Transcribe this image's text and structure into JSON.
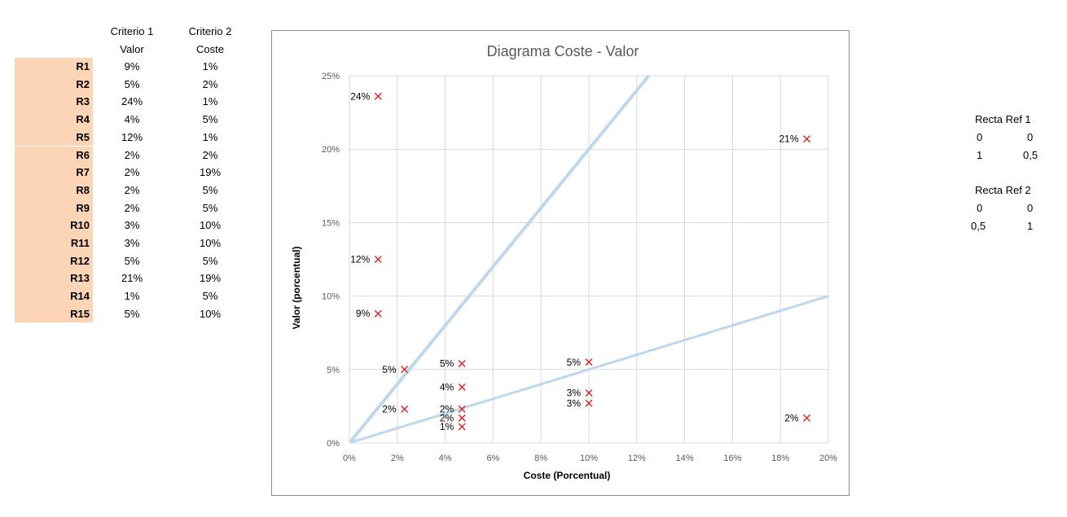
{
  "table": {
    "header1": [
      "Criterio 1",
      "Criterio 2"
    ],
    "header2": [
      "Valor",
      "Coste"
    ],
    "rows": [
      {
        "id": "R1",
        "valor": "9%",
        "coste": "1%"
      },
      {
        "id": "R2",
        "valor": "5%",
        "coste": "2%"
      },
      {
        "id": "R3",
        "valor": "24%",
        "coste": "1%"
      },
      {
        "id": "R4",
        "valor": "4%",
        "coste": "5%"
      },
      {
        "id": "R5",
        "valor": "12%",
        "coste": "1%"
      },
      {
        "id": "R6",
        "valor": "2%",
        "coste": "2%"
      },
      {
        "id": "R7",
        "valor": "2%",
        "coste": "19%"
      },
      {
        "id": "R8",
        "valor": "2%",
        "coste": "5%"
      },
      {
        "id": "R9",
        "valor": "2%",
        "coste": "5%"
      },
      {
        "id": "R10",
        "valor": "3%",
        "coste": "10%"
      },
      {
        "id": "R11",
        "valor": "3%",
        "coste": "10%"
      },
      {
        "id": "R12",
        "valor": "5%",
        "coste": "5%"
      },
      {
        "id": "R13",
        "valor": "21%",
        "coste": "19%"
      },
      {
        "id": "R14",
        "valor": "1%",
        "coste": "5%"
      },
      {
        "id": "R15",
        "valor": "5%",
        "coste": "10%"
      }
    ]
  },
  "ref1": {
    "title": "Recta Ref 1",
    "rows": [
      [
        "0",
        "0"
      ],
      [
        "1",
        "0,5"
      ]
    ]
  },
  "ref2": {
    "title": "Recta Ref 2",
    "rows": [
      [
        "0",
        "0"
      ],
      [
        "0,5",
        "1"
      ]
    ]
  },
  "chart_data": {
    "type": "scatter",
    "title": "Diagrama Coste - Valor",
    "xlabel": "Coste (Porcentual)",
    "ylabel": "Valor (porcentual)",
    "xlim": [
      0,
      20
    ],
    "ylim": [
      0,
      25
    ],
    "xticks": [
      "0%",
      "2%",
      "4%",
      "6%",
      "8%",
      "10%",
      "12%",
      "14%",
      "16%",
      "18%",
      "20%"
    ],
    "yticks": [
      "0%",
      "5%",
      "10%",
      "15%",
      "20%",
      "25%"
    ],
    "grid": true,
    "marker_color": "#e02020",
    "line_color": "#bdd7ee",
    "points": [
      {
        "x": 1.2,
        "y": 8.8,
        "label": "9%"
      },
      {
        "x": 2.3,
        "y": 5.0,
        "label": "5%"
      },
      {
        "x": 1.2,
        "y": 23.6,
        "label": "24%"
      },
      {
        "x": 4.7,
        "y": 3.8,
        "label": "4%"
      },
      {
        "x": 1.2,
        "y": 12.5,
        "label": "12%"
      },
      {
        "x": 2.3,
        "y": 2.3,
        "label": "2%"
      },
      {
        "x": 19.1,
        "y": 1.7,
        "label": "2%"
      },
      {
        "x": 4.7,
        "y": 2.3,
        "label": "2%"
      },
      {
        "x": 4.7,
        "y": 1.7,
        "label": "2%"
      },
      {
        "x": 10.0,
        "y": 3.4,
        "label": "3%"
      },
      {
        "x": 10.0,
        "y": 2.7,
        "label": "3%"
      },
      {
        "x": 4.7,
        "y": 5.4,
        "label": "5%"
      },
      {
        "x": 19.1,
        "y": 20.7,
        "label": "21%"
      },
      {
        "x": 4.7,
        "y": 1.1,
        "label": "1%"
      },
      {
        "x": 10.0,
        "y": 5.5,
        "label": "5%"
      }
    ],
    "ref_lines": [
      {
        "x": [
          0,
          1
        ],
        "y": [
          0,
          0.5
        ]
      },
      {
        "x": [
          0,
          0.5
        ],
        "y": [
          0,
          1
        ]
      }
    ]
  }
}
